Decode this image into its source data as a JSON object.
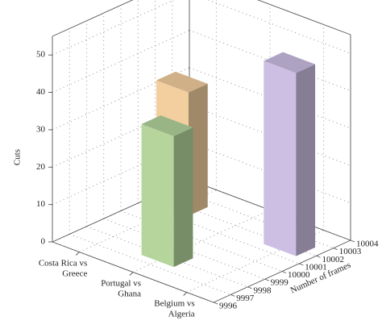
{
  "chart_data": {
    "type": "bar3d",
    "categories": [
      "Costa Rica vs\nGreece",
      "Portugal vs\nGhana",
      "Belgium vs\nAlgeria"
    ],
    "x": [
      10002,
      9998,
      10002
    ],
    "values": [
      33,
      35,
      49
    ],
    "colors": [
      "#f3cf9f",
      "#b5d59c",
      "#cdbfe4"
    ],
    "xlabel": "Number of frames",
    "ylabel": "Cuts",
    "xlim": [
      9996,
      10004
    ],
    "xticks": [
      9996,
      9997,
      9998,
      9999,
      10000,
      10001,
      10002,
      10003,
      10004
    ],
    "ylim": [
      0,
      55
    ],
    "yticks": [
      0,
      10,
      20,
      30,
      40,
      50
    ],
    "grid": true
  }
}
